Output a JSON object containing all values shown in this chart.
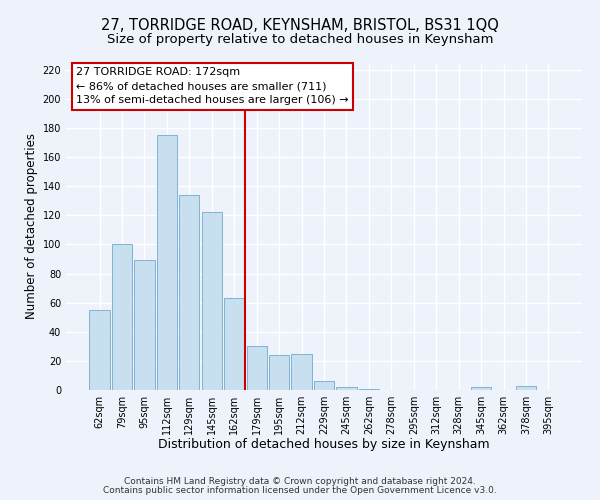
{
  "title_line1": "27, TORRIDGE ROAD, KEYNSHAM, BRISTOL, BS31 1QQ",
  "title_line2": "Size of property relative to detached houses in Keynsham",
  "xlabel": "Distribution of detached houses by size in Keynsham",
  "ylabel": "Number of detached properties",
  "bar_labels": [
    "62sqm",
    "79sqm",
    "95sqm",
    "112sqm",
    "129sqm",
    "145sqm",
    "162sqm",
    "179sqm",
    "195sqm",
    "212sqm",
    "229sqm",
    "245sqm",
    "262sqm",
    "278sqm",
    "295sqm",
    "312sqm",
    "328sqm",
    "345sqm",
    "362sqm",
    "378sqm",
    "395sqm"
  ],
  "bar_values": [
    55,
    100,
    89,
    175,
    134,
    122,
    63,
    30,
    24,
    25,
    6,
    2,
    1,
    0,
    0,
    0,
    0,
    2,
    0,
    3,
    0
  ],
  "bar_color": "#c8dff0",
  "bar_edge_color": "#7fb3d3",
  "vline_color": "#cc0000",
  "annotation_title": "27 TORRIDGE ROAD: 172sqm",
  "annotation_line1": "← 86% of detached houses are smaller (711)",
  "annotation_line2": "13% of semi-detached houses are larger (106) →",
  "box_facecolor": "#ffffff",
  "box_edgecolor": "#cc0000",
  "ylim": [
    0,
    225
  ],
  "yticks": [
    0,
    20,
    40,
    60,
    80,
    100,
    120,
    140,
    160,
    180,
    200,
    220
  ],
  "footer_line1": "Contains HM Land Registry data © Crown copyright and database right 2024.",
  "footer_line2": "Contains public sector information licensed under the Open Government Licence v3.0.",
  "bg_color": "#eef2fb",
  "title_fontsize": 10.5,
  "subtitle_fontsize": 9.5,
  "xlabel_fontsize": 9,
  "ylabel_fontsize": 8.5,
  "tick_fontsize": 7,
  "annotation_fontsize": 8,
  "footer_fontsize": 6.5
}
